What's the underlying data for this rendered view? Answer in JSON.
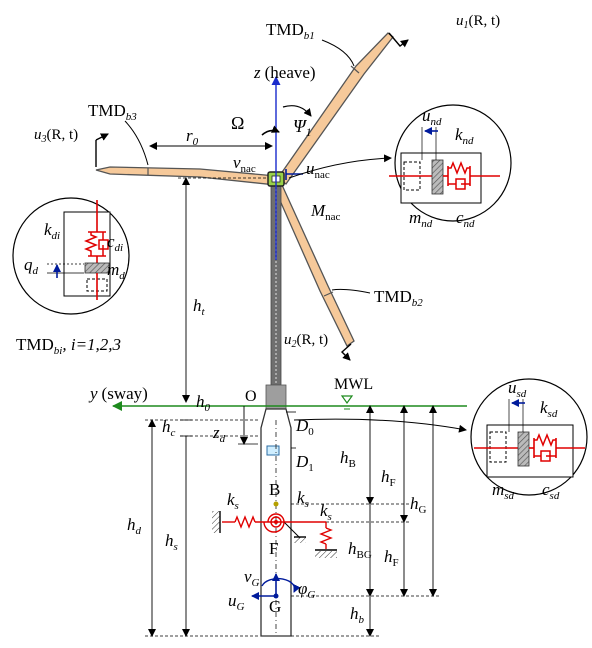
{
  "colors": {
    "blade_fill": "#f6c99a",
    "blade_stroke": "#555555",
    "vertical_axis": "#1a2bcc",
    "water_line": "#1e8a1e",
    "damper_red": "#e00000",
    "damper_blue": "#001b9c",
    "nacelle": "#9ad14a"
  },
  "labels": {
    "tmd_b1": "TMD",
    "tmd_b1_sub": "b1",
    "tmd_b2": "TMD",
    "tmd_b2_sub": "b2",
    "tmd_b3": "TMD",
    "tmd_b3_sub": "b3",
    "u1": "u",
    "u1_sub": "1",
    "u1_args": "(R, t)",
    "u2": "u",
    "u2_sub": "2",
    "u2_args": "(R, t)",
    "u3": "u",
    "u3_sub": "3",
    "u3_args": "(R, t)",
    "z_heave": "z",
    "z_heave_text": "(heave)",
    "omega": "Ω",
    "psi": "Ψ",
    "psi_sub": "1",
    "r0": "r",
    "r0_sub": "0",
    "v_nac": "v",
    "v_nac_sub": "nac",
    "u_nac": "u",
    "u_nac_sub": "nac",
    "m_nac": "M",
    "m_nac_sub": "nac",
    "ht": "h",
    "ht_sub": "t",
    "tmd_bi": "TMD",
    "tmd_bi_sub": "bi",
    "tmd_bi_rest": ", i=1,2,3",
    "y_sway": "y",
    "y_sway_text": "(sway)",
    "origin": "O",
    "mwl": "MWL",
    "h0": "h",
    "h0_sub": "0",
    "hc": "h",
    "hc_sub": "c",
    "zd": "z",
    "zd_sub": "d",
    "D0": "D",
    "D0_sub": "0",
    "D1": "D",
    "D1_sub": "1",
    "hd": "h",
    "hd_sub": "d",
    "hs": "h",
    "hs_sub": "s",
    "hB": "h",
    "hB_sub": "B",
    "hF_top": "h",
    "hF_top_sub": "F",
    "hG": "h",
    "hG_sub": "G",
    "hBG": "h",
    "hBG_sub": "BG",
    "hF_bot": "h",
    "hF_bot_sub": "F",
    "hb": "h",
    "hb_sub": "b",
    "B": "B",
    "F": "F",
    "G": "G",
    "ks_left": "k",
    "ks_left_sub": "s",
    "ks_mid": "k",
    "ks_mid_sub": "s",
    "ks_right": "k",
    "ks_right_sub": "s",
    "vG": "v",
    "vG_sub": "G",
    "uG": "u",
    "uG_sub": "G",
    "phiG": "φ",
    "phiG_sub": "G"
  },
  "inset_blade": {
    "k": "k",
    "k_sub": "di",
    "c": "c",
    "c_sub": "di",
    "q": "q",
    "q_sub": "d",
    "m": "m",
    "m_sub": "d"
  },
  "inset_nacelle": {
    "u": "u",
    "u_sub": "nd",
    "k": "k",
    "k_sub": "nd",
    "m": "m",
    "m_sub": "nd",
    "c": "c",
    "c_sub": "nd"
  },
  "inset_platform": {
    "u": "u",
    "u_sub": "sd",
    "k": "k",
    "k_sub": "sd",
    "m": "m",
    "m_sub": "sd",
    "c": "c",
    "c_sub": "sd"
  }
}
